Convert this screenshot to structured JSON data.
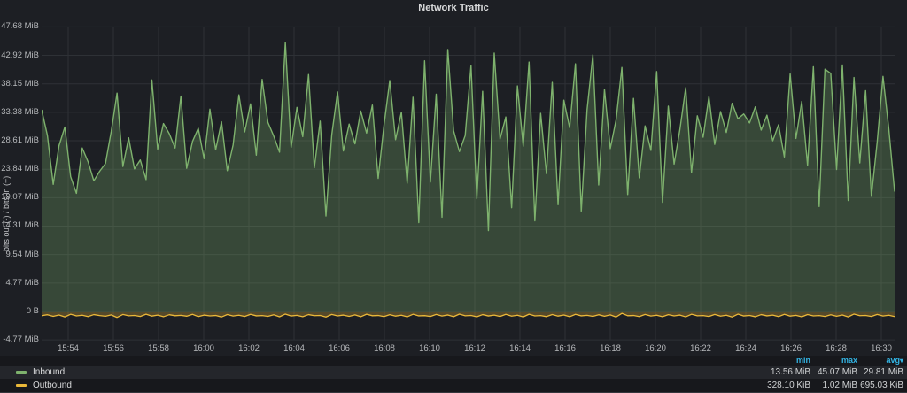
{
  "title": "Network Traffic",
  "y_axis": {
    "label": "bits out (-) / bits in (+)"
  },
  "icons": {
    "sort_caret": "▾"
  },
  "colors": {
    "panel_bg": "#1d1f24",
    "grid": "#2e3136",
    "tick_text": "#b7b9bc",
    "title_text": "#d8d9da",
    "legend_header": "#33b5e5",
    "inbound": "#7EB26D",
    "outbound": "#EAB839"
  },
  "legend": {
    "columns": [
      "min",
      "max",
      "avg"
    ],
    "sort_column": "avg",
    "rows": [
      {
        "label": "Inbound",
        "color": "#7EB26D",
        "min": "13.56 MiB",
        "max": "45.07 MiB",
        "avg": "29.81 MiB"
      },
      {
        "label": "Outbound",
        "color": "#EAB839",
        "min": "328.10 KiB",
        "max": "1.02 MiB",
        "avg": "695.03 KiB"
      }
    ]
  },
  "chart_data": {
    "type": "area",
    "title": "Network Traffic",
    "ylabel": "bits out (-) / bits in (+)",
    "ylim": [
      -4.77,
      47.68
    ],
    "grid": true,
    "legend_position": "bottom",
    "y_tick_labels": [
      "47.68 MiB",
      "42.92 MiB",
      "38.15 MiB",
      "33.38 MiB",
      "28.61 MiB",
      "23.84 MiB",
      "19.07 MiB",
      "14.31 MiB",
      "9.54 MiB",
      "4.77 MiB",
      "0 B",
      "-4.77 MiB"
    ],
    "y_tick_values": [
      47.68,
      42.92,
      38.15,
      33.38,
      28.61,
      23.84,
      19.07,
      14.31,
      9.54,
      4.77,
      0,
      -4.77
    ],
    "x_tick_labels": [
      "15:54",
      "15:56",
      "15:58",
      "16:00",
      "16:02",
      "16:04",
      "16:06",
      "16:08",
      "16:10",
      "16:12",
      "16:14",
      "16:16",
      "16:18",
      "16:20",
      "16:22",
      "16:24",
      "16:26",
      "16:28",
      "16:30"
    ],
    "series": [
      {
        "name": "Inbound",
        "color": "#7EB26D",
        "unit": "MiB",
        "sign": 1,
        "values": [
          33.8,
          29.5,
          21.3,
          27.8,
          30.9,
          22.6,
          19.8,
          27.4,
          25.1,
          21.9,
          23.5,
          24.8,
          30.2,
          36.6,
          24.3,
          29.1,
          23.9,
          25.4,
          22.1,
          38.8,
          27.2,
          31.5,
          29.8,
          27.4,
          36.1,
          24.0,
          28.5,
          30.7,
          25.6,
          33.9,
          27.1,
          31.8,
          23.6,
          27.9,
          36.3,
          30.1,
          34.8,
          26.2,
          38.9,
          31.7,
          29.4,
          26.7,
          45.07,
          27.5,
          34.2,
          29.3,
          39.7,
          24.1,
          31.9,
          16.0,
          29.6,
          36.8,
          26.9,
          31.4,
          28.1,
          33.6,
          29.9,
          34.6,
          22.3,
          31.2,
          38.7,
          28.8,
          33.4,
          21.5,
          35.9,
          14.9,
          42.0,
          21.7,
          36.4,
          15.8,
          43.9,
          30.3,
          26.8,
          29.5,
          41.2,
          18.9,
          36.9,
          13.56,
          43.3,
          28.9,
          32.6,
          17.4,
          37.8,
          27.7,
          41.8,
          15.2,
          33.2,
          23.1,
          38.4,
          17.9,
          35.4,
          30.8,
          41.5,
          16.8,
          33.8,
          43.0,
          21.2,
          37.2,
          27.3,
          32.1,
          40.9,
          19.6,
          35.7,
          22.4,
          31.1,
          27.0,
          40.2,
          18.3,
          34.4,
          24.7,
          30.5,
          37.5,
          23.3,
          32.8,
          29.2,
          36.0,
          28.0,
          33.5,
          30.0,
          34.9,
          32.3,
          33.1,
          31.6,
          34.3,
          30.4,
          32.9,
          28.6,
          31.3,
          25.9,
          39.8,
          29.0,
          35.2,
          24.5,
          41.0,
          17.6,
          40.6,
          39.9,
          23.8,
          41.3,
          18.6,
          39.2,
          24.9,
          37.0,
          19.3,
          28.4,
          39.4,
          30.6,
          20.1
        ]
      },
      {
        "name": "Outbound",
        "color": "#EAB839",
        "unit": "KiB",
        "sign": -1,
        "values": [
          720,
          560,
          840,
          610,
          930,
          480,
          760,
          650,
          880,
          540,
          700,
          820,
          590,
          1020,
          520,
          740,
          680,
          850,
          470,
          790,
          630,
          900,
          560,
          730,
          670,
          810,
          500,
          880,
          620,
          760,
          690,
          940,
          530,
          780,
          640,
          860,
          490,
          750,
          700,
          830,
          570,
          910,
          450,
          770,
          660,
          890,
          540,
          720,
          680,
          950,
          510,
          760,
          620,
          840,
          580,
          900,
          470,
          730,
          690,
          870,
          550,
          790,
          640,
          920,
          480,
          750,
          710,
          850,
          520,
          780,
          600,
          890,
          460,
          740,
          680,
          910,
          540,
          770,
          630,
          860,
          500,
          800,
          650,
          930,
          470,
          760,
          700,
          880,
          530,
          790,
          610,
          900,
          490,
          750,
          670,
          840,
          560,
          820,
          590,
          950,
          328,
          730,
          690,
          870,
          510,
          780,
          640,
          890,
          550,
          760,
          620,
          920,
          480,
          740,
          700,
          860,
          520,
          800,
          650,
          940,
          460,
          770,
          680,
          900,
          540,
          750,
          630,
          880,
          490,
          790,
          660,
          910,
          530,
          760,
          700,
          850,
          570,
          810,
          600,
          930,
          450,
          720,
          680,
          860,
          520,
          780,
          640,
          870
        ]
      }
    ]
  }
}
